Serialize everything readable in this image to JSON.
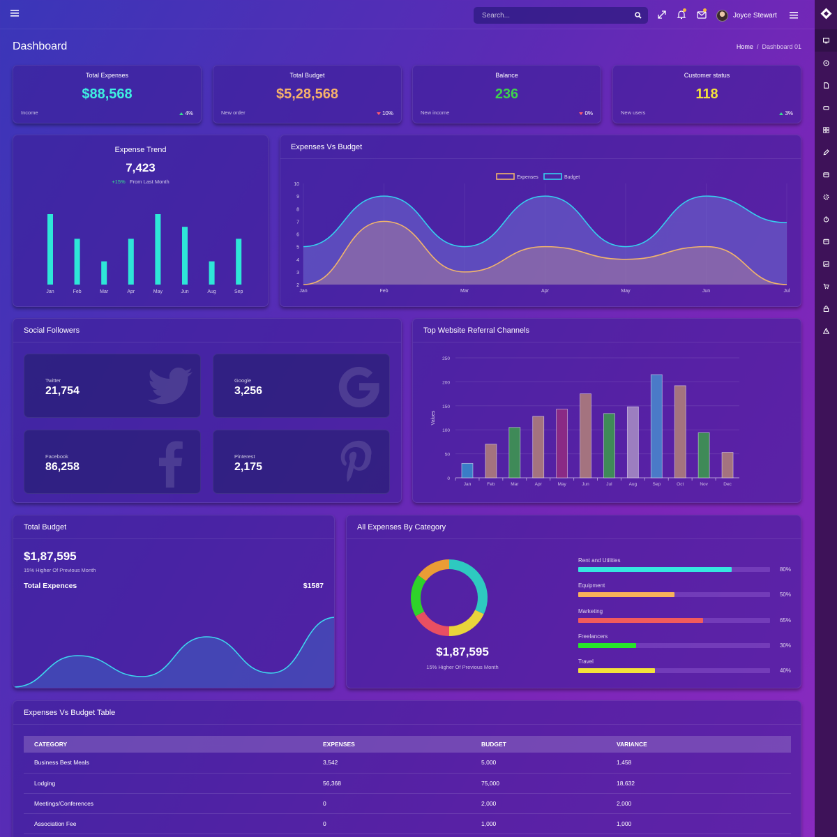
{
  "topbar": {
    "search_placeholder": "Search...",
    "user_name": "Joyce Stewart",
    "icons": [
      "menu-icon",
      "search-icon",
      "fullscreen-icon",
      "bell-icon",
      "mail-icon",
      "hamburger-icon"
    ]
  },
  "page": {
    "title": "Dashboard",
    "breadcrumb_home": "Home",
    "breadcrumb_sep": "/",
    "breadcrumb_current": "Dashboard 01"
  },
  "stats": [
    {
      "title": "Total Expenses",
      "value": "$88,568",
      "sub": "Income",
      "change": "4%",
      "direction": "up",
      "color": "#3ef0e0"
    },
    {
      "title": "Total Budget",
      "value": "$5,28,568",
      "sub": "New order",
      "change": "10%",
      "direction": "down",
      "color": "#f7b26a"
    },
    {
      "title": "Balance",
      "value": "236",
      "sub": "New income",
      "change": "0%",
      "direction": "down",
      "color": "#3ed24c"
    },
    {
      "title": "Customer status",
      "value": "118",
      "sub": "New users",
      "change": "3%",
      "direction": "up",
      "color": "#f2e23a"
    }
  ],
  "expense_trend": {
    "title": "Expense Trend",
    "value": "7,423",
    "change": "+15%",
    "change_label": "From Last Month",
    "chart_data": {
      "type": "bar",
      "categories": [
        "Jan",
        "Feb",
        "Mar",
        "Apr",
        "May",
        "Jun",
        "Aug",
        "Sep"
      ],
      "values": [
        100,
        65,
        33,
        65,
        100,
        82,
        33,
        65
      ],
      "ylim": [
        0,
        100
      ],
      "color": "#2ee6d8"
    }
  },
  "expenses_vs_budget": {
    "title": "Expenses Vs Budget",
    "chart_data": {
      "type": "area",
      "x": [
        "Jan",
        "Feb",
        "Mar",
        "Apr",
        "May",
        "Jun",
        "Jul"
      ],
      "y_ticks": [
        2,
        3,
        4,
        5,
        6,
        7,
        8,
        9,
        10
      ],
      "ylim": [
        2,
        10
      ],
      "legend": "top-center",
      "series": [
        {
          "name": "Expenses",
          "values": [
            2,
            7,
            3,
            5,
            4,
            5,
            2
          ],
          "color": "#f2b56b"
        },
        {
          "name": "Budget",
          "values": [
            5,
            9,
            5,
            9,
            5,
            9,
            6.9
          ],
          "color": "#36d0ee"
        }
      ]
    }
  },
  "social": {
    "title": "Social Followers",
    "items": [
      {
        "name": "Twitter",
        "count": "21,754",
        "icon": "twitter-icon"
      },
      {
        "name": "Google",
        "count": "3,256",
        "icon": "google-icon"
      },
      {
        "name": "Facebook",
        "count": "86,258",
        "icon": "facebook-icon"
      },
      {
        "name": "Pinterest",
        "count": "2,175",
        "icon": "pinterest-icon"
      }
    ]
  },
  "referral": {
    "title": "Top Website Referral Channels",
    "chart_data": {
      "type": "bar",
      "categories": [
        "Jan",
        "Feb",
        "Mar",
        "Apr",
        "May",
        "Jun",
        "Jul",
        "Aug",
        "Sep",
        "Oct",
        "Nov",
        "Dec"
      ],
      "values": [
        30,
        70,
        105,
        128,
        143,
        175,
        134,
        148,
        215,
        192,
        94,
        53
      ],
      "colors": [
        "#3a7dc7",
        "#a4737f",
        "#3f8a58",
        "#a4737f",
        "#8a2a85",
        "#a4737f",
        "#3f8a58",
        "#9c7ec0",
        "#4a7ac8",
        "#a4737f",
        "#3f8a58",
        "#a4737f"
      ],
      "ylabel": "Values",
      "y_ticks": [
        0,
        50,
        100,
        150,
        200,
        250
      ],
      "ylim": [
        0,
        250
      ]
    }
  },
  "total_budget": {
    "title": "Total Budget",
    "value": "$1,87,595",
    "sub": "15% Higher Of Previous Month",
    "expenses_label": "Total Expences",
    "expenses_value": "$1587",
    "chart_data": {
      "type": "area",
      "values": [
        0,
        0.45,
        0.15,
        0.72,
        0.2,
        1.0
      ],
      "color": "#3ed8ee"
    }
  },
  "by_category": {
    "title": "All Expenses By Category",
    "value": "$1,87,595",
    "sub": "15% Higher Of Previous Month",
    "chart_data": {
      "type": "pie",
      "slices": [
        {
          "value": 32,
          "color": "#2ec9c0"
        },
        {
          "value": 18,
          "color": "#e8d43a"
        },
        {
          "value": 17,
          "color": "#e94f62"
        },
        {
          "value": 18,
          "color": "#2fd22a"
        },
        {
          "value": 15,
          "color": "#ea9c35"
        }
      ]
    },
    "items": [
      {
        "label": "Rent and Utilities",
        "percent": 80,
        "pct_text": "80%",
        "color": "#36e6e0"
      },
      {
        "label": "Equipment",
        "percent": 50,
        "pct_text": "50%",
        "color": "#f8b25a"
      },
      {
        "label": "Marketing",
        "percent": 65,
        "pct_text": "65%",
        "color": "#f25b5b"
      },
      {
        "label": "Freelancers",
        "percent": 30,
        "pct_text": "30%",
        "color": "#27e62a"
      },
      {
        "label": "Travel",
        "percent": 40,
        "pct_text": "40%",
        "color": "#f3e23a"
      }
    ]
  },
  "table": {
    "title": "Expenses Vs Budget Table",
    "headers": [
      "CATEGORY",
      "EXPENSES",
      "BUDGET",
      "VARIANCE"
    ],
    "rows": [
      [
        "Business Best Meals",
        "3,542",
        "5,000",
        "1,458"
      ],
      [
        "Lodging",
        "56,368",
        "75,000",
        "18,632"
      ],
      [
        "Meetings/Conferences",
        "0",
        "2,000",
        "2,000"
      ],
      [
        "Association Fee",
        "0",
        "1,000",
        "1,000"
      ]
    ]
  }
}
